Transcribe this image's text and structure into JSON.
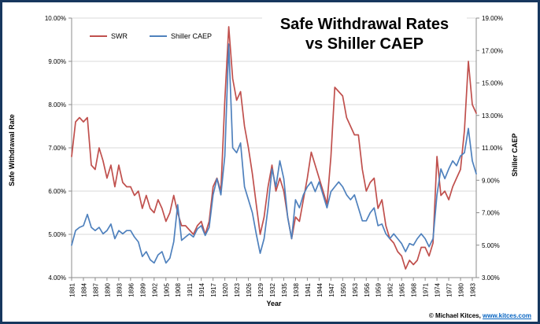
{
  "chart": {
    "title_lines": [
      "Safe Withdrawal Rates",
      "vs Shiller CAEP"
    ]
  },
  "footer": {
    "copyright": "© Michael Kitces, ",
    "link": "www.kitces.com"
  },
  "chart_data": {
    "type": "line",
    "title": "Safe Withdrawal Rates vs Shiller CAEP",
    "grid": true,
    "legend_position": "top-left",
    "x_axis": {
      "label": "Year",
      "min": 1881,
      "max": 1984,
      "tick_labels": [
        1881,
        1884,
        1887,
        1890,
        1893,
        1896,
        1899,
        1902,
        1905,
        1908,
        1911,
        1914,
        1917,
        1920,
        1923,
        1926,
        1929,
        1932,
        1935,
        1938,
        1941,
        1944,
        1947,
        1950,
        1953,
        1956,
        1959,
        1962,
        1965,
        1968,
        1971,
        1974,
        1977,
        1980,
        1983
      ]
    },
    "left_axis": {
      "label": "Safe Withdrawal Rate",
      "min": 4,
      "max": 10,
      "tick_labels": [
        "4.00%",
        "5.00%",
        "6.00%",
        "7.00%",
        "8.00%",
        "9.00%",
        "10.00%"
      ]
    },
    "right_axis": {
      "label": "Shiller CAEP",
      "min": 3,
      "max": 19,
      "tick_labels": [
        "3.00%",
        "5.00%",
        "7.00%",
        "9.00%",
        "11.00%",
        "13.00%",
        "15.00%",
        "17.00%",
        "19.00%"
      ]
    },
    "years": [
      1881,
      1882,
      1883,
      1884,
      1885,
      1886,
      1887,
      1888,
      1889,
      1890,
      1891,
      1892,
      1893,
      1894,
      1895,
      1896,
      1897,
      1898,
      1899,
      1900,
      1901,
      1902,
      1903,
      1904,
      1905,
      1906,
      1907,
      1908,
      1909,
      1910,
      1911,
      1912,
      1913,
      1914,
      1915,
      1916,
      1917,
      1918,
      1919,
      1920,
      1921,
      1922,
      1923,
      1924,
      1925,
      1926,
      1927,
      1928,
      1929,
      1930,
      1931,
      1932,
      1933,
      1934,
      1935,
      1936,
      1937,
      1938,
      1939,
      1940,
      1941,
      1942,
      1943,
      1944,
      1945,
      1946,
      1947,
      1948,
      1949,
      1950,
      1951,
      1952,
      1953,
      1954,
      1955,
      1956,
      1957,
      1958,
      1959,
      1960,
      1961,
      1962,
      1963,
      1964,
      1965,
      1966,
      1967,
      1968,
      1969,
      1970,
      1971,
      1972,
      1973,
      1974,
      1975,
      1976,
      1977,
      1978,
      1979,
      1980,
      1981,
      1982,
      1983,
      1984
    ],
    "series": [
      {
        "name": "SWR",
        "axis": "left",
        "color": "#c0504d",
        "values": [
          6.8,
          7.6,
          7.7,
          7.6,
          7.7,
          6.6,
          6.5,
          7.0,
          6.7,
          6.3,
          6.6,
          6.1,
          6.6,
          6.2,
          6.1,
          6.1,
          5.9,
          6.0,
          5.6,
          5.9,
          5.6,
          5.5,
          5.8,
          5.6,
          5.3,
          5.5,
          5.9,
          5.5,
          5.2,
          5.2,
          5.1,
          5.0,
          5.2,
          5.3,
          5.0,
          5.3,
          6.1,
          6.3,
          6.0,
          8.1,
          9.8,
          8.6,
          8.1,
          8.3,
          7.5,
          7.0,
          6.4,
          5.7,
          5.0,
          5.4,
          6.1,
          6.6,
          6.0,
          6.3,
          6.0,
          5.4,
          4.9,
          5.4,
          5.3,
          5.8,
          6.3,
          6.9,
          6.6,
          6.3,
          6.0,
          5.7,
          6.8,
          8.4,
          8.3,
          8.2,
          7.7,
          7.5,
          7.3,
          7.3,
          6.5,
          6.0,
          6.2,
          6.3,
          5.6,
          5.8,
          5.2,
          4.9,
          4.8,
          4.6,
          4.5,
          4.2,
          4.4,
          4.3,
          4.4,
          4.7,
          4.7,
          4.5,
          4.8,
          6.8,
          5.9,
          6.0,
          5.8,
          6.1,
          6.3,
          6.5,
          7.4,
          9.0,
          8.0,
          7.8
        ]
      },
      {
        "name": "Shiller CAEP",
        "axis": "right",
        "color": "#4f81bd",
        "values": [
          5.0,
          5.9,
          6.1,
          6.2,
          6.9,
          6.1,
          5.9,
          6.1,
          5.7,
          5.9,
          6.3,
          5.4,
          5.9,
          5.7,
          5.9,
          5.9,
          5.5,
          5.2,
          4.3,
          4.6,
          4.1,
          3.9,
          4.4,
          4.6,
          3.9,
          4.2,
          5.2,
          7.5,
          5.3,
          5.5,
          5.7,
          5.5,
          6.0,
          6.2,
          5.6,
          6.1,
          8.1,
          9.1,
          8.1,
          10.5,
          17.4,
          11.0,
          10.7,
          11.3,
          8.6,
          7.8,
          7.0,
          5.7,
          4.5,
          5.4,
          7.3,
          9.7,
          8.6,
          10.2,
          9.1,
          6.7,
          5.4,
          7.8,
          7.3,
          8.1,
          8.6,
          8.9,
          8.3,
          8.9,
          8.1,
          7.3,
          8.3,
          8.6,
          8.9,
          8.6,
          8.1,
          7.8,
          8.1,
          7.3,
          6.5,
          6.5,
          7.0,
          7.3,
          6.2,
          6.3,
          5.7,
          5.4,
          5.7,
          5.4,
          5.1,
          4.6,
          5.1,
          5.0,
          5.4,
          5.7,
          5.4,
          4.9,
          5.4,
          8.1,
          9.7,
          9.1,
          9.7,
          10.2,
          9.9,
          10.5,
          10.7,
          12.2,
          10.2,
          9.4
        ]
      }
    ]
  }
}
